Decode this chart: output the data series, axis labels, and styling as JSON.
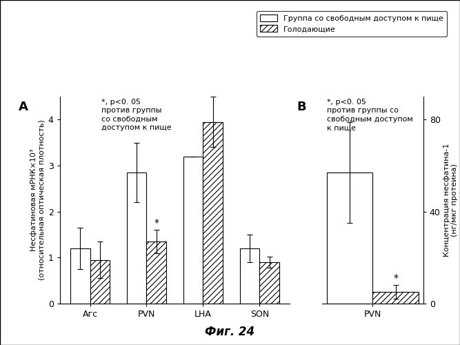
{
  "panel_A": {
    "categories": [
      "Агс",
      "PVN",
      "LHA",
      "SON"
    ],
    "free_access_values": [
      1.2,
      2.85,
      3.2,
      1.2
    ],
    "free_access_errors": [
      0.45,
      0.65,
      0.0,
      0.3
    ],
    "fasting_values": [
      0.95,
      1.35,
      3.95,
      0.9
    ],
    "fasting_errors": [
      0.4,
      0.25,
      0.55,
      0.12
    ],
    "ylim": [
      0,
      4.5
    ],
    "yticks": [
      0,
      1,
      2,
      3,
      4
    ],
    "ylabel": "Несфатиновая мРНК×10³\n(относительная оптическая плотность)",
    "panel_label": "A",
    "annotation": "*, p<0. 05\nпротив группы\nсо свободным\nдоступом к пище"
  },
  "panel_B": {
    "categories": [
      "PVN"
    ],
    "free_access_values": [
      57
    ],
    "free_access_errors": [
      22
    ],
    "fasting_values": [
      5
    ],
    "fasting_errors": [
      3
    ],
    "ylim": [
      0,
      90
    ],
    "yticks": [
      0,
      40,
      80
    ],
    "ylabel": "Концентрация несфатина-1\n(нг/мкг протеина)",
    "panel_label": "B",
    "annotation": "*, p<0. 05\nпротив группы со\nсвободным доступом\nк пище"
  },
  "legend_labels": [
    "Группа со свободным доступом к пище",
    "Голодающие"
  ],
  "free_access_color": "white",
  "fasting_color": "white",
  "fasting_hatch": "////",
  "bar_edgecolor": "black",
  "fig_title": "Фиг. 24",
  "bar_width": 0.35,
  "fontsize": 9
}
